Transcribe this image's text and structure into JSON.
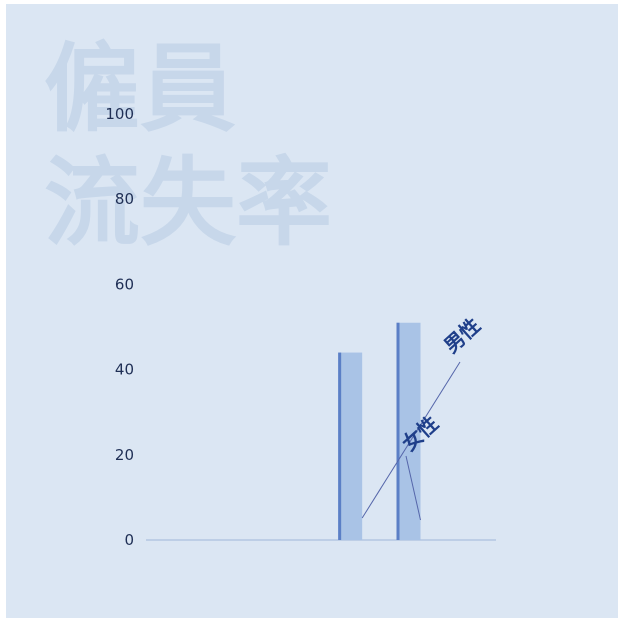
{
  "chart_data": {
    "type": "bar",
    "title_lines": [
      "僱員",
      "流失率"
    ],
    "categories": [
      "",
      "",
      "",
      "",
      "",
      ""
    ],
    "series": [
      {
        "name": "男性",
        "values": [
          null,
          null,
          null,
          44,
          null,
          null
        ]
      },
      {
        "name": "女性",
        "values": [
          null,
          null,
          null,
          null,
          51,
          null
        ]
      }
    ],
    "ylim": [
      0,
      100
    ],
    "yticks": [
      "0",
      "20",
      "40",
      "60",
      "80",
      "100"
    ],
    "annotations": [
      "男性",
      "女性"
    ],
    "grid": false,
    "legend": "none"
  },
  "colors": {
    "background": "#dbe6f3",
    "title": "#c7d7ea",
    "bar_fill": "#a9c3e6",
    "bar_edge": "#5b7fc6",
    "axis": "#9fb5d9",
    "tick_text": "#1f2f55",
    "callout_line": "#5566aa",
    "callout_text": "#1f3f8a"
  }
}
